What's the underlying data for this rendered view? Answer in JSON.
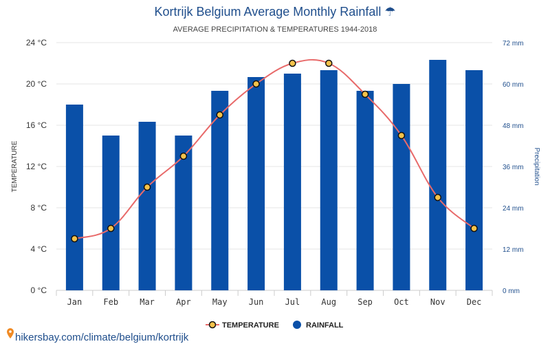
{
  "chart_data": {
    "type": "bar",
    "title": "Kortrijk Belgium Average Monthly Rainfall ☂",
    "subtitle": "AVERAGE PRECIPITATION & TEMPERATURES 1944-2018",
    "categories": [
      "Jan",
      "Feb",
      "Mar",
      "Apr",
      "May",
      "Jun",
      "Jul",
      "Aug",
      "Sep",
      "Oct",
      "Nov",
      "Dec"
    ],
    "series": [
      {
        "name": "RAINFALL",
        "type": "bar",
        "axis": "right",
        "unit": "mm",
        "color": "#0a50a8",
        "values": [
          54,
          45,
          49,
          45,
          58,
          62,
          63,
          64,
          58,
          60,
          67,
          64
        ]
      },
      {
        "name": "TEMPERATURE",
        "type": "line",
        "axis": "left",
        "unit": "°C",
        "color": "#e86a6a",
        "marker_fill": "#f5c24a",
        "values": [
          5,
          6,
          10,
          13,
          17,
          20,
          22,
          22,
          19,
          15,
          9,
          6
        ]
      }
    ],
    "y_left": {
      "label": "TEMPERATURE",
      "range": [
        0,
        24
      ],
      "ticks": [
        "0 °C",
        "4 °C",
        "8 °C",
        "12 °C",
        "16 °C",
        "20 °C",
        "24 °C"
      ]
    },
    "y_right": {
      "label": "Precipitation",
      "range": [
        0,
        72
      ],
      "ticks": [
        "0 mm",
        "12 mm",
        "24 mm",
        "36 mm",
        "48 mm",
        "60 mm",
        "72 mm"
      ]
    },
    "grid": true,
    "legend_position": "bottom-center",
    "legend": [
      "TEMPERATURE",
      "RAINFALL"
    ]
  },
  "footer": {
    "site": "hikersbay.com/climate/belgium/kortrijk",
    "pin_icon": "location-pin-icon"
  }
}
